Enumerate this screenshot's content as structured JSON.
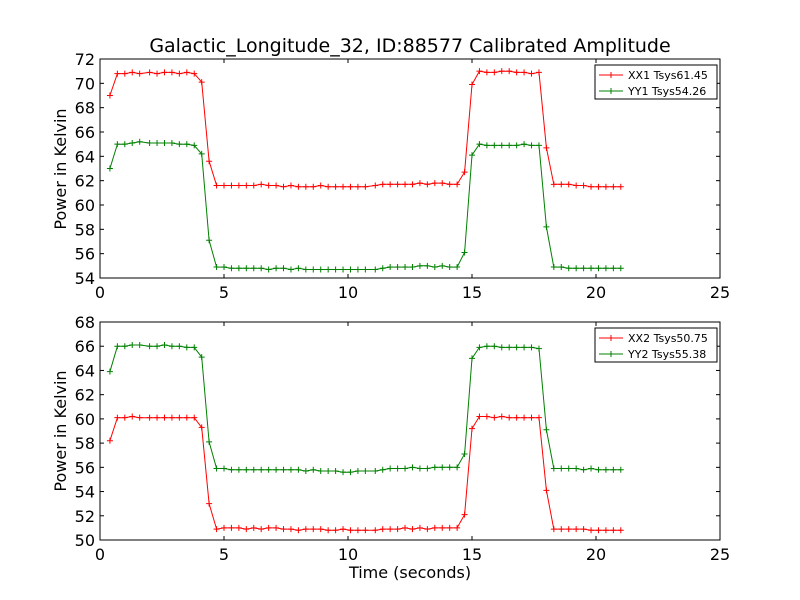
{
  "chart_data": [
    {
      "type": "line",
      "title": "Galactic_Longitude_32, ID:88577 Calibrated Amplitude",
      "xlabel": "",
      "ylabel": "Power in Kelvin",
      "xlim": [
        0,
        25
      ],
      "ylim": [
        54,
        72
      ],
      "xticks": [
        0,
        5,
        10,
        15,
        20,
        25
      ],
      "yticks": [
        54,
        56,
        58,
        60,
        62,
        64,
        66,
        68,
        70,
        72
      ],
      "grid": false,
      "legend_position": "top-right",
      "marker": "plus",
      "x": [
        0.4,
        0.7,
        1.0,
        1.3,
        1.6,
        2.0,
        2.3,
        2.6,
        2.9,
        3.2,
        3.5,
        3.8,
        4.1,
        4.4,
        4.7,
        5.0,
        5.3,
        5.6,
        5.9,
        6.2,
        6.5,
        6.8,
        7.1,
        7.4,
        7.7,
        8.0,
        8.3,
        8.6,
        8.9,
        9.2,
        9.5,
        9.8,
        10.1,
        10.4,
        10.7,
        11.1,
        11.4,
        11.7,
        12.0,
        12.3,
        12.6,
        12.9,
        13.2,
        13.5,
        13.8,
        14.1,
        14.4,
        14.7,
        15.0,
        15.3,
        15.6,
        15.9,
        16.2,
        16.5,
        16.8,
        17.1,
        17.4,
        17.7,
        18.0,
        18.3,
        18.6,
        18.9,
        19.2,
        19.5,
        19.8,
        20.1,
        20.4,
        20.7,
        21.0
      ],
      "series": [
        {
          "name": "XX1 Tsys61.45",
          "color": "#ff0000",
          "values": [
            69.0,
            70.8,
            70.8,
            70.9,
            70.8,
            70.9,
            70.8,
            70.9,
            70.9,
            70.8,
            70.9,
            70.8,
            70.1,
            63.6,
            61.6,
            61.6,
            61.6,
            61.6,
            61.6,
            61.6,
            61.7,
            61.6,
            61.6,
            61.5,
            61.6,
            61.5,
            61.5,
            61.5,
            61.6,
            61.5,
            61.5,
            61.5,
            61.5,
            61.5,
            61.5,
            61.6,
            61.7,
            61.7,
            61.7,
            61.7,
            61.7,
            61.8,
            61.7,
            61.8,
            61.8,
            61.7,
            61.7,
            62.7,
            69.9,
            71.0,
            70.9,
            70.9,
            71.0,
            71.0,
            70.9,
            70.9,
            70.8,
            70.9,
            64.7,
            61.7,
            61.7,
            61.7,
            61.6,
            61.6,
            61.5,
            61.5,
            61.5,
            61.5,
            61.5
          ]
        },
        {
          "name": "YY1 Tsys54.26",
          "color": "#008000",
          "values": [
            63.0,
            65.0,
            65.0,
            65.1,
            65.2,
            65.1,
            65.1,
            65.1,
            65.1,
            65.0,
            65.0,
            64.9,
            64.2,
            57.1,
            54.9,
            54.9,
            54.8,
            54.8,
            54.8,
            54.8,
            54.8,
            54.7,
            54.8,
            54.8,
            54.7,
            54.8,
            54.7,
            54.7,
            54.7,
            54.7,
            54.7,
            54.7,
            54.7,
            54.7,
            54.7,
            54.7,
            54.8,
            54.9,
            54.9,
            54.9,
            54.9,
            55.0,
            55.0,
            54.9,
            55.0,
            54.9,
            54.9,
            56.1,
            64.1,
            65.0,
            64.9,
            64.9,
            64.9,
            64.9,
            64.9,
            65.0,
            64.9,
            64.9,
            58.2,
            54.9,
            54.9,
            54.8,
            54.8,
            54.8,
            54.8,
            54.8,
            54.8,
            54.8,
            54.8
          ]
        }
      ]
    },
    {
      "type": "line",
      "title": "",
      "xlabel": "Time (seconds)",
      "ylabel": "Power in Kelvin",
      "xlim": [
        0,
        25
      ],
      "ylim": [
        50,
        68
      ],
      "xticks": [
        0,
        5,
        10,
        15,
        20,
        25
      ],
      "yticks": [
        50,
        52,
        54,
        56,
        58,
        60,
        62,
        64,
        66,
        68
      ],
      "grid": false,
      "legend_position": "top-right",
      "marker": "plus",
      "x": [
        0.4,
        0.7,
        1.0,
        1.3,
        1.6,
        2.0,
        2.3,
        2.6,
        2.9,
        3.2,
        3.5,
        3.8,
        4.1,
        4.4,
        4.7,
        5.0,
        5.3,
        5.6,
        5.9,
        6.2,
        6.5,
        6.8,
        7.1,
        7.4,
        7.7,
        8.0,
        8.3,
        8.6,
        8.9,
        9.2,
        9.5,
        9.8,
        10.1,
        10.4,
        10.7,
        11.1,
        11.4,
        11.7,
        12.0,
        12.3,
        12.6,
        12.9,
        13.2,
        13.5,
        13.8,
        14.1,
        14.4,
        14.7,
        15.0,
        15.3,
        15.6,
        15.9,
        16.2,
        16.5,
        16.8,
        17.1,
        17.4,
        17.7,
        18.0,
        18.3,
        18.6,
        18.9,
        19.2,
        19.5,
        19.8,
        20.1,
        20.4,
        20.7,
        21.0
      ],
      "series": [
        {
          "name": "XX2 Tsys50.75",
          "color": "#ff0000",
          "values": [
            58.2,
            60.1,
            60.1,
            60.2,
            60.1,
            60.1,
            60.1,
            60.1,
            60.1,
            60.1,
            60.1,
            60.1,
            59.3,
            53.0,
            50.9,
            51.0,
            51.0,
            51.0,
            50.9,
            51.0,
            50.9,
            51.0,
            51.0,
            50.9,
            50.9,
            50.8,
            50.9,
            50.9,
            50.9,
            50.8,
            50.8,
            50.9,
            50.8,
            50.8,
            50.8,
            50.8,
            50.9,
            50.9,
            50.9,
            51.0,
            50.9,
            51.0,
            50.9,
            51.0,
            51.0,
            51.0,
            51.0,
            52.1,
            59.2,
            60.2,
            60.2,
            60.1,
            60.2,
            60.1,
            60.1,
            60.1,
            60.1,
            60.1,
            54.1,
            50.9,
            50.9,
            50.9,
            50.9,
            50.9,
            50.8,
            50.8,
            50.8,
            50.8,
            50.8
          ]
        },
        {
          "name": "YY2 Tsys55.38",
          "color": "#008000",
          "values": [
            63.9,
            66.0,
            66.0,
            66.1,
            66.1,
            66.0,
            66.0,
            66.1,
            66.0,
            66.0,
            65.9,
            65.9,
            65.1,
            58.1,
            55.9,
            55.9,
            55.8,
            55.8,
            55.8,
            55.8,
            55.8,
            55.8,
            55.8,
            55.8,
            55.8,
            55.8,
            55.7,
            55.8,
            55.7,
            55.7,
            55.7,
            55.6,
            55.6,
            55.7,
            55.7,
            55.7,
            55.8,
            55.9,
            55.9,
            55.9,
            56.0,
            55.9,
            55.9,
            56.0,
            56.0,
            56.0,
            56.0,
            57.1,
            65.0,
            65.9,
            66.0,
            66.0,
            65.9,
            65.9,
            65.9,
            65.9,
            65.9,
            65.8,
            59.1,
            55.9,
            55.9,
            55.9,
            55.9,
            55.8,
            55.9,
            55.8,
            55.8,
            55.8,
            55.8
          ]
        }
      ]
    }
  ]
}
